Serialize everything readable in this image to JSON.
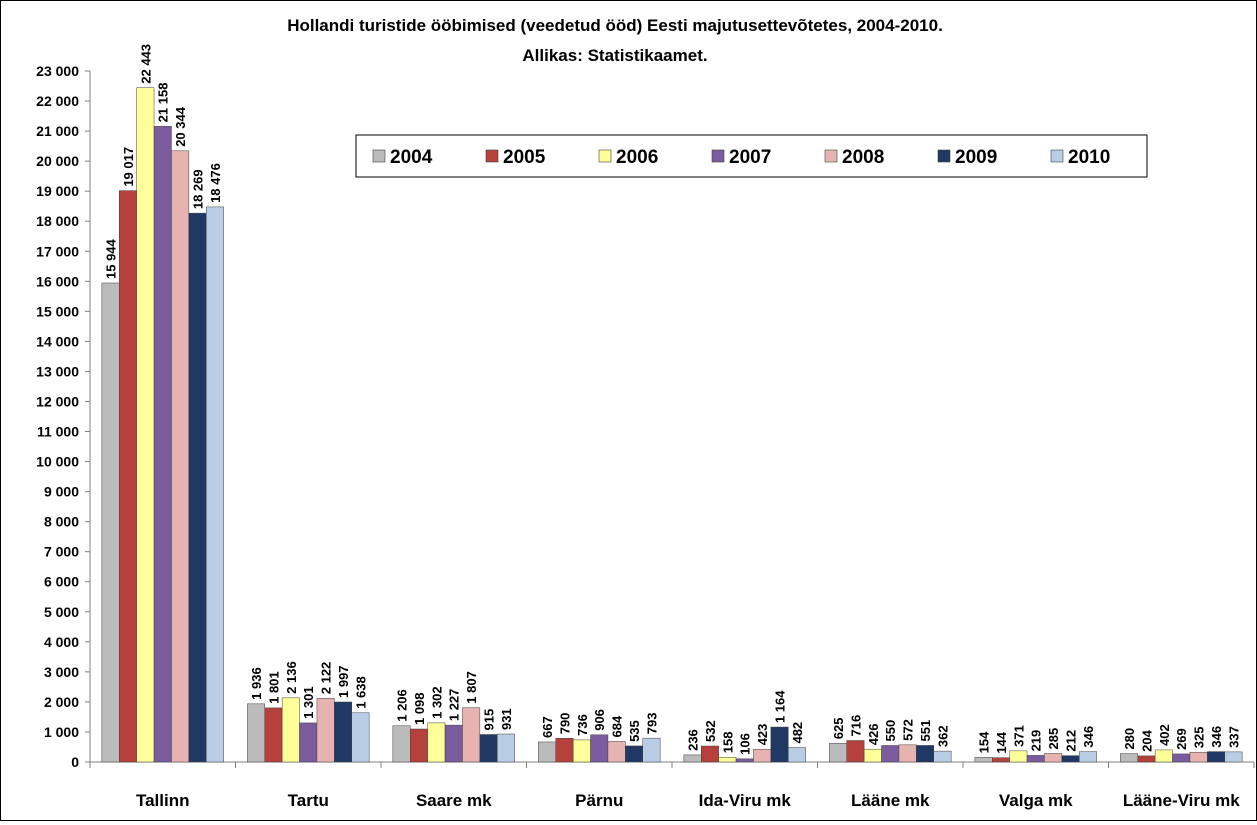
{
  "chart_data": {
    "type": "bar",
    "title": "Hollandi turistide ööbimised (veedetud ööd) Eesti majutusettevõtetes, 2004-2010.",
    "subtitle": "Allikas: Statistikaamet.",
    "xlabel": "",
    "ylabel": "",
    "ylim": [
      0,
      23000
    ],
    "ytick_step": 1000,
    "grid": false,
    "legend_position": "top-right",
    "categories": [
      "Tallinn",
      "Tartu",
      "Saare mk",
      "Pärnu",
      "Ida-Viru mk",
      "Lääne mk",
      "Valga mk",
      "Lääne-Viru mk"
    ],
    "series": [
      {
        "name": "2004",
        "color": "#BBBBBB",
        "values": [
          15944,
          1936,
          1206,
          667,
          236,
          625,
          154,
          280
        ],
        "labels": [
          "15 944",
          "1 936",
          "1 206",
          "667",
          "236",
          "625",
          "154",
          "280"
        ]
      },
      {
        "name": "2005",
        "color": "#B5403C",
        "values": [
          19017,
          1801,
          1098,
          790,
          532,
          716,
          144,
          204
        ],
        "labels": [
          "19 017",
          "1 801",
          "1 098",
          "790",
          "532",
          "716",
          "144",
          "204"
        ]
      },
      {
        "name": "2006",
        "color": "#FFFF99",
        "values": [
          22443,
          2136,
          1302,
          736,
          158,
          426,
          371,
          402
        ],
        "labels": [
          "22 443",
          "2 136",
          "1 302",
          "736",
          "158",
          "426",
          "371",
          "402"
        ]
      },
      {
        "name": "2007",
        "color": "#7A5C9E",
        "values": [
          21158,
          1301,
          1227,
          906,
          106,
          550,
          219,
          269
        ],
        "labels": [
          "21 158",
          "1 301",
          "1 227",
          "906",
          "106",
          "550",
          "219",
          "269"
        ]
      },
      {
        "name": "2008",
        "color": "#E6B3B0",
        "values": [
          20344,
          2122,
          1807,
          684,
          423,
          572,
          285,
          325
        ],
        "labels": [
          "20 344",
          "2 122",
          "1 807",
          "684",
          "423",
          "572",
          "285",
          "325"
        ]
      },
      {
        "name": "2009",
        "color": "#1F3864",
        "values": [
          18269,
          1997,
          915,
          535,
          1164,
          551,
          212,
          346
        ],
        "labels": [
          "18 269",
          "1 997",
          "915",
          "535",
          "1 164",
          "551",
          "212",
          "346"
        ]
      },
      {
        "name": "2010",
        "color": "#B9CDE5",
        "values": [
          18476,
          1638,
          931,
          793,
          482,
          362,
          346,
          337
        ],
        "labels": [
          "18 476",
          "1 638",
          "931",
          "793",
          "482",
          "362",
          "346",
          "337"
        ]
      }
    ]
  }
}
